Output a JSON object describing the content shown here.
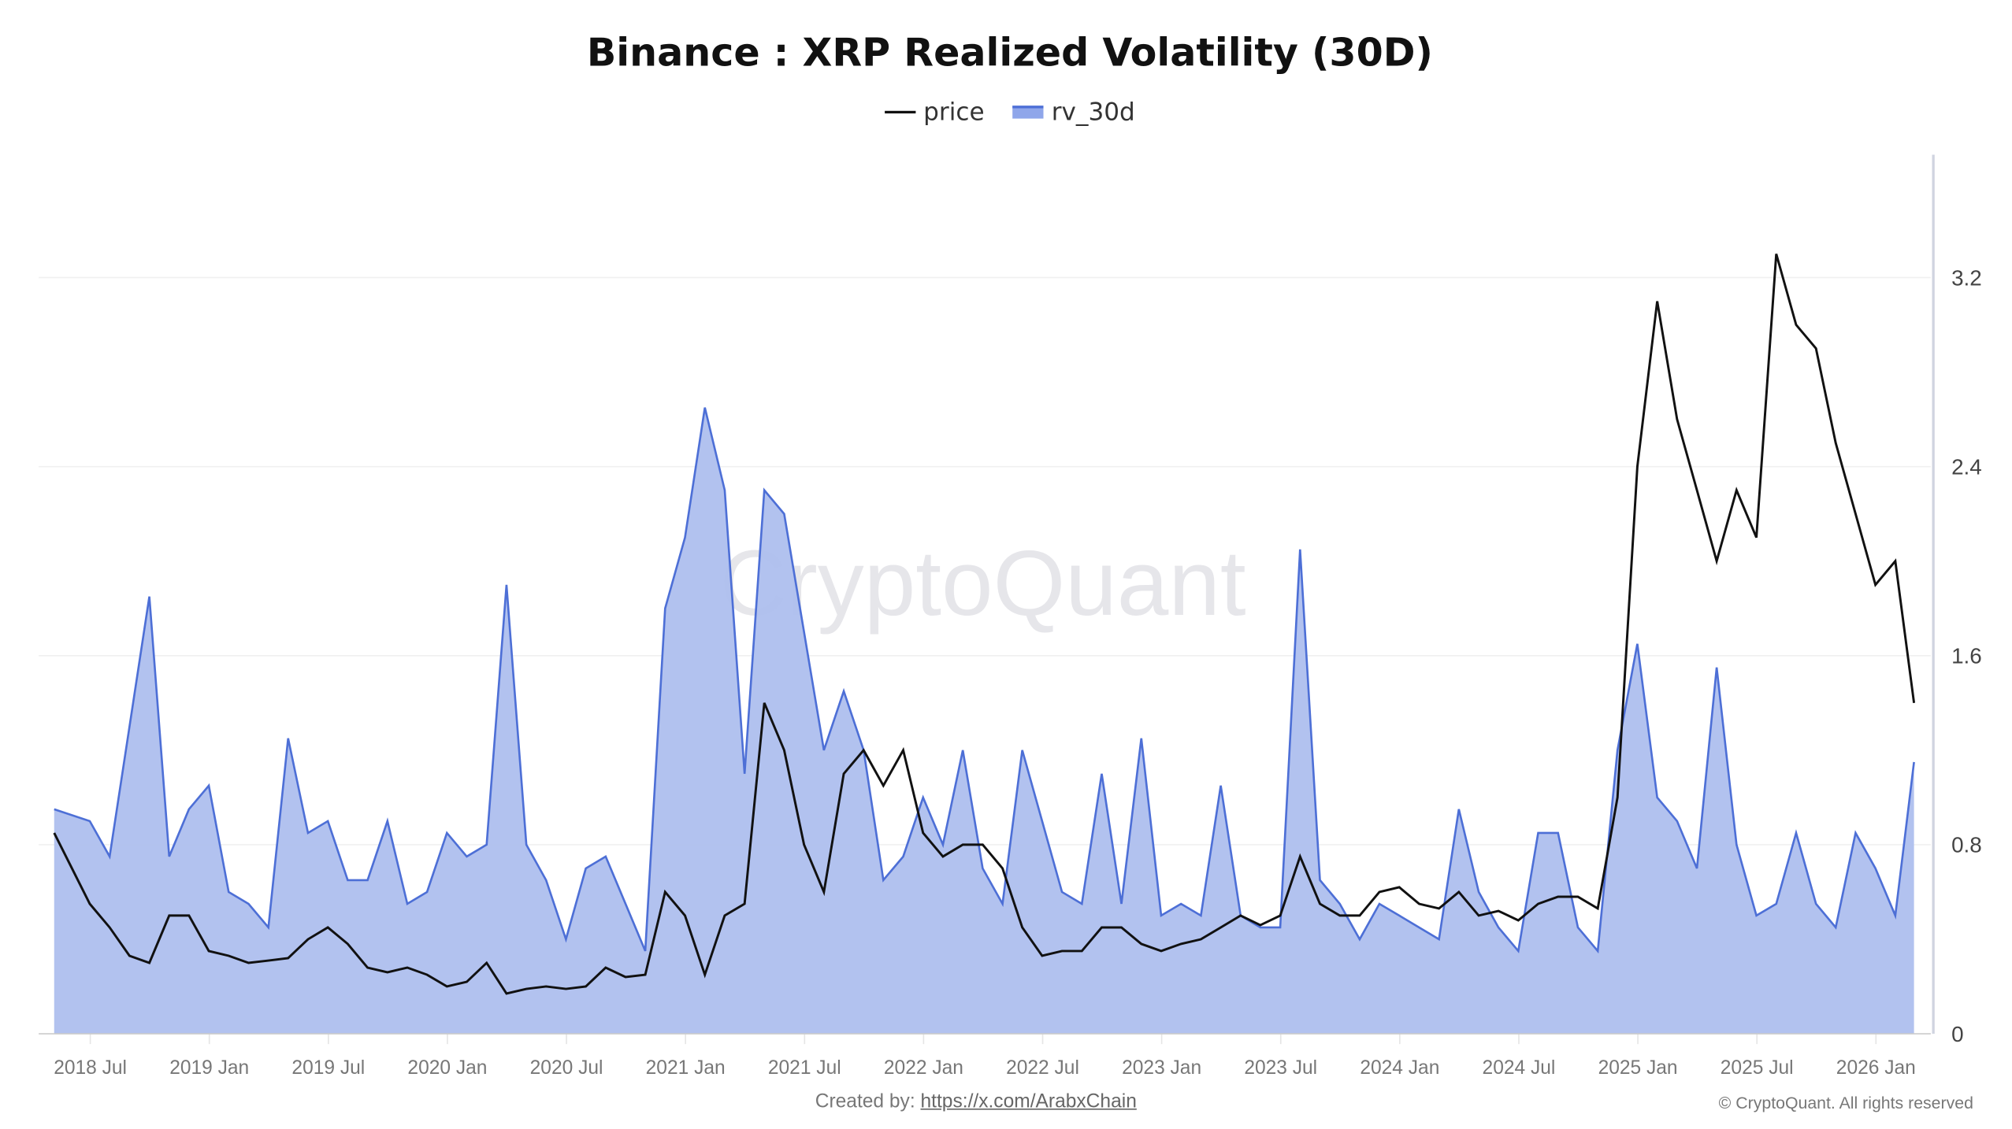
{
  "chart_data": {
    "type": "area",
    "title": "Binance : XRP Realized Volatility (30D)",
    "legend_position": "top",
    "grid": true,
    "ylim": [
      0,
      3.72
    ],
    "yticks": [
      "0",
      "0.8",
      "1.6",
      "2.4",
      "3.2"
    ],
    "ytick_values": [
      0,
      0.8,
      1.6,
      2.4,
      3.2
    ],
    "xticks": [
      "2018 Jul",
      "2019 Jan",
      "2019 Jul",
      "2020 Jan",
      "2020 Jul",
      "2021 Jan",
      "2021 Jul",
      "2022 Jan",
      "2022 Jul",
      "2023 Jan",
      "2023 Jul",
      "2024 Jan",
      "2024 Jul",
      "2025 Jan",
      "2025 Jul",
      "2026 Jan"
    ],
    "x": [
      "2018-05",
      "2018-06",
      "2018-07",
      "2018-08",
      "2018-09",
      "2018-10",
      "2018-11",
      "2018-12",
      "2019-01",
      "2019-02",
      "2019-03",
      "2019-04",
      "2019-05",
      "2019-06",
      "2019-07",
      "2019-08",
      "2019-09",
      "2019-10",
      "2019-11",
      "2019-12",
      "2020-01",
      "2020-02",
      "2020-03",
      "2020-04",
      "2020-05",
      "2020-06",
      "2020-07",
      "2020-08",
      "2020-09",
      "2020-10",
      "2020-11",
      "2020-12",
      "2021-01",
      "2021-02",
      "2021-03",
      "2021-04",
      "2021-05",
      "2021-06",
      "2021-07",
      "2021-08",
      "2021-09",
      "2021-10",
      "2021-11",
      "2021-12",
      "2022-01",
      "2022-02",
      "2022-03",
      "2022-04",
      "2022-05",
      "2022-06",
      "2022-07",
      "2022-08",
      "2022-09",
      "2022-10",
      "2022-11",
      "2022-12",
      "2023-01",
      "2023-02",
      "2023-03",
      "2023-04",
      "2023-05",
      "2023-06",
      "2023-07",
      "2023-08",
      "2023-09",
      "2023-10",
      "2023-11",
      "2023-12",
      "2024-01",
      "2024-02",
      "2024-03",
      "2024-04",
      "2024-05",
      "2024-06",
      "2024-07",
      "2024-08",
      "2024-09",
      "2024-10",
      "2024-11",
      "2024-12",
      "2025-01",
      "2025-02",
      "2025-03",
      "2025-04",
      "2025-05",
      "2025-06",
      "2025-07",
      "2025-08",
      "2025-09",
      "2025-10",
      "2025-11",
      "2025-12",
      "2026-01",
      "2026-02"
    ],
    "series": [
      {
        "name": "price",
        "color": "#111111",
        "values": [
          0.85,
          0.55,
          0.45,
          0.33,
          0.3,
          0.5,
          0.5,
          0.35,
          0.33,
          0.3,
          0.31,
          0.32,
          0.4,
          0.45,
          0.38,
          0.28,
          0.26,
          0.28,
          0.25,
          0.2,
          0.22,
          0.3,
          0.17,
          0.19,
          0.2,
          0.19,
          0.2,
          0.28,
          0.24,
          0.25,
          0.6,
          0.5,
          0.25,
          0.5,
          0.55,
          1.4,
          1.2,
          0.8,
          0.6,
          1.1,
          1.2,
          1.05,
          1.2,
          0.85,
          0.75,
          0.8,
          0.8,
          0.7,
          0.45,
          0.33,
          0.35,
          0.35,
          0.45,
          0.45,
          0.38,
          0.35,
          0.38,
          0.4,
          0.45,
          0.5,
          0.46,
          0.5,
          0.75,
          0.55,
          0.5,
          0.5,
          0.6,
          0.62,
          0.55,
          0.53,
          0.6,
          0.5,
          0.52,
          0.48,
          0.55,
          0.58,
          0.58,
          0.53,
          1.0,
          2.4,
          3.1,
          2.6,
          2.3,
          2.0,
          2.3,
          2.1,
          3.3,
          3.0,
          2.9,
          2.5,
          2.2,
          1.9,
          2.0,
          1.4
        ]
      },
      {
        "name": "rv_30d",
        "color": "#4d6fd6",
        "fill": "#aebfee",
        "values": [
          0.95,
          0.9,
          0.75,
          1.3,
          1.85,
          0.75,
          0.95,
          1.05,
          0.6,
          0.55,
          0.45,
          1.25,
          0.85,
          0.9,
          0.65,
          0.65,
          0.9,
          0.55,
          0.6,
          0.85,
          0.75,
          0.8,
          1.9,
          0.8,
          0.65,
          0.4,
          0.7,
          0.75,
          0.55,
          0.35,
          1.8,
          2.1,
          2.65,
          2.3,
          1.1,
          2.3,
          2.2,
          1.7,
          1.2,
          1.45,
          1.2,
          0.65,
          0.75,
          1.0,
          0.8,
          1.2,
          0.7,
          0.55,
          1.2,
          0.9,
          0.6,
          0.55,
          1.1,
          0.55,
          1.25,
          0.5,
          0.55,
          0.5,
          1.05,
          0.5,
          0.45,
          0.45,
          2.05,
          0.65,
          0.55,
          0.4,
          0.55,
          0.5,
          0.45,
          0.4,
          0.95,
          0.6,
          0.45,
          0.35,
          0.85,
          0.85,
          0.45,
          0.35,
          1.2,
          1.65,
          1.0,
          0.9,
          0.7,
          1.55,
          0.8,
          0.5,
          0.55,
          0.85,
          0.55,
          0.45,
          0.85,
          0.7,
          0.5,
          1.15
        ]
      }
    ]
  },
  "legend": {
    "price": "price",
    "rv_30d": "rv_30d"
  },
  "watermark": "CryptoQuant",
  "footer": {
    "created_by": "Created by:",
    "link": "https://x.com/ArabxChain",
    "copyright": "© CryptoQuant. All rights reserved"
  }
}
